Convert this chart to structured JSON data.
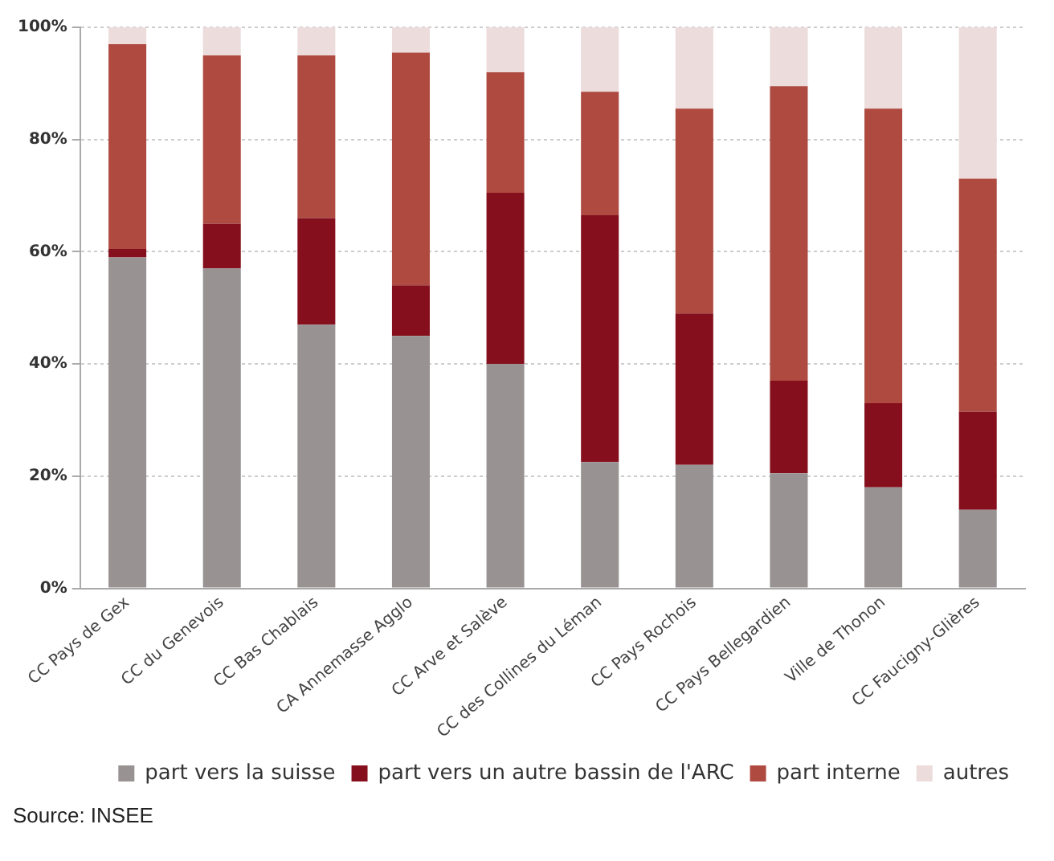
{
  "chart_data": {
    "type": "bar",
    "stacked": true,
    "categories": [
      "CC Pays de Gex",
      "CC du Genevois",
      "CC Bas Chablais",
      "CA Annemasse Agglo",
      "CC Arve et Salève",
      "CC des Collines du Léman",
      "CC Pays Rochois",
      "CC Pays Bellegardien",
      "Ville de Thonon",
      "CC Faucigny-Glières"
    ],
    "series": [
      {
        "name": "part vers la suisse",
        "color": "#989292",
        "values": [
          59,
          57,
          47,
          45,
          40,
          22.5,
          22,
          20.5,
          18,
          14
        ]
      },
      {
        "name": "part vers un autre bassin de l'ARC",
        "color": "#850f1c",
        "values": [
          1.5,
          8,
          19,
          9,
          30.5,
          44,
          27,
          16.5,
          15,
          17.5
        ]
      },
      {
        "name": "part interne",
        "color": "#ae4a40",
        "values": [
          36.5,
          30,
          29,
          41.5,
          21.5,
          22,
          36.5,
          52.5,
          52.5,
          41.5
        ]
      },
      {
        "name": "autres",
        "color": "#ecdcdc",
        "values": [
          3,
          5,
          5,
          4.5,
          8,
          11.5,
          14.5,
          10.5,
          14.5,
          27
        ]
      }
    ],
    "ylim": [
      0,
      100
    ],
    "yticks": [
      {
        "value": 0,
        "label": "0%"
      },
      {
        "value": 20,
        "label": "20%"
      },
      {
        "value": 40,
        "label": "40%"
      },
      {
        "value": 60,
        "label": "60%"
      },
      {
        "value": 80,
        "label": "80%"
      },
      {
        "value": 100,
        "label": "100%"
      }
    ],
    "grid": "y",
    "legend": "bottom",
    "annotations": [
      "Source: INSEE"
    ]
  }
}
